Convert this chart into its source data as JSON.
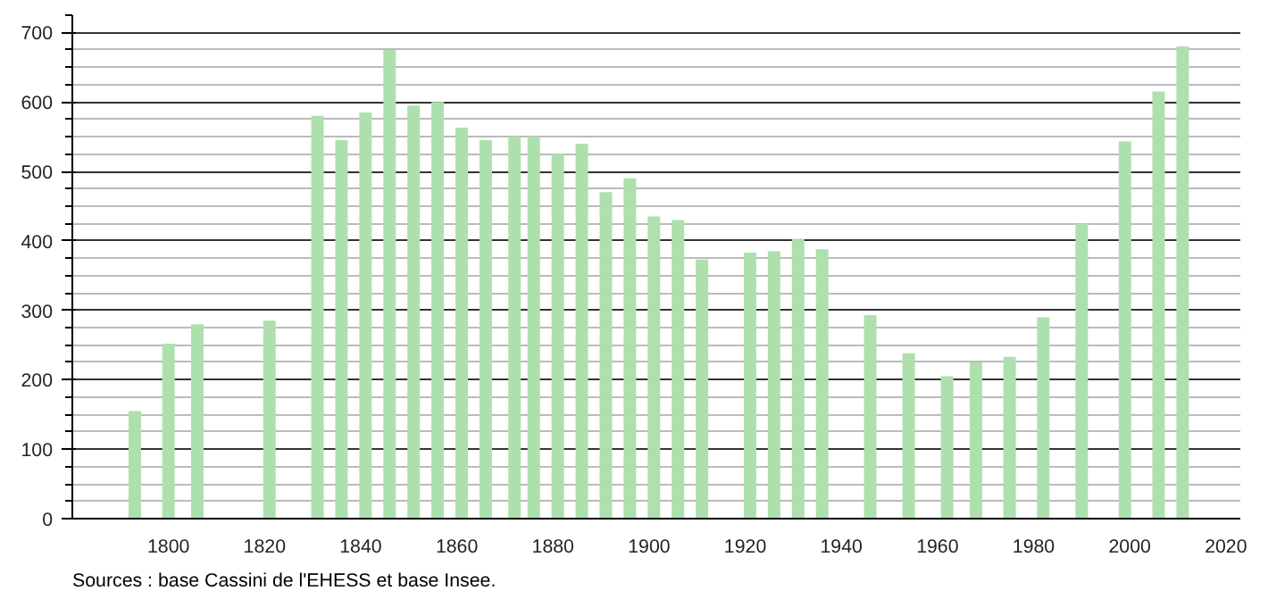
{
  "chart_data": {
    "type": "bar",
    "color": "#aee0ae",
    "x": [
      1793,
      1800,
      1806,
      1821,
      1831,
      1836,
      1841,
      1846,
      1851,
      1856,
      1861,
      1866,
      1872,
      1876,
      1881,
      1886,
      1891,
      1896,
      1901,
      1906,
      1911,
      1921,
      1926,
      1931,
      1936,
      1946,
      1954,
      1962,
      1968,
      1975,
      1982,
      1990,
      1999,
      2006,
      2011
    ],
    "values": [
      155,
      252,
      280,
      285,
      580,
      545,
      585,
      675,
      595,
      600,
      563,
      545,
      550,
      550,
      525,
      540,
      470,
      490,
      435,
      430,
      373,
      383,
      385,
      403,
      388,
      293,
      238,
      205,
      225,
      233,
      290,
      425,
      543,
      615,
      680
    ],
    "xlim": [
      1780,
      2023
    ],
    "xticks": [
      1800,
      1820,
      1840,
      1860,
      1880,
      1900,
      1920,
      1940,
      1960,
      1980,
      2000,
      2020
    ],
    "ylim": [
      0,
      725
    ],
    "yticks": [
      0,
      100,
      200,
      300,
      400,
      500,
      600,
      700
    ],
    "grid": "y",
    "annotations": [
      "Sources : base Cassini de l'EHESS et base Insee."
    ]
  }
}
